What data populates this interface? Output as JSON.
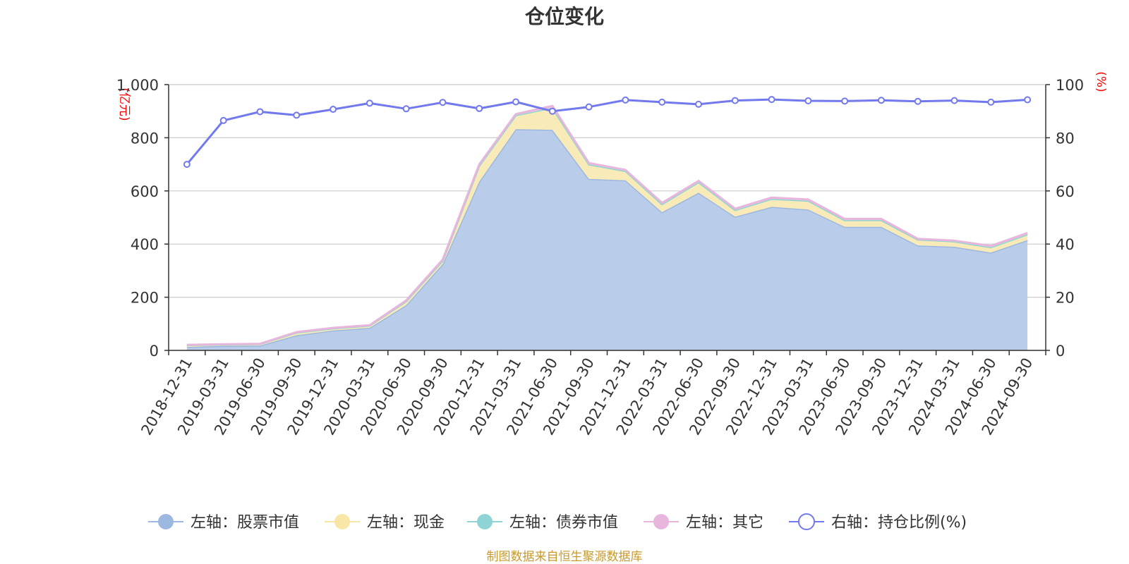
{
  "chart_data": {
    "type": "area",
    "title": "仓位变化",
    "left_unit": "(亿元)",
    "right_unit": "(%)",
    "categories": [
      "2018-12-31",
      "2019-03-31",
      "2019-06-30",
      "2019-09-30",
      "2019-12-31",
      "2020-03-31",
      "2020-06-30",
      "2020-09-30",
      "2020-12-31",
      "2021-03-31",
      "2021-06-30",
      "2021-09-30",
      "2021-12-31",
      "2022-03-31",
      "2022-06-30",
      "2022-09-30",
      "2022-12-31",
      "2023-03-31",
      "2023-06-30",
      "2023-09-30",
      "2023-12-31",
      "2024-03-31",
      "2024-06-30",
      "2024-09-30"
    ],
    "left_axis": {
      "min": 0,
      "max": 1000,
      "ticks": [
        0,
        200,
        400,
        600,
        800,
        1000
      ],
      "tick_labels": [
        "0",
        "200",
        "400",
        "600",
        "800",
        "1,000"
      ]
    },
    "right_axis": {
      "min": 0,
      "max": 100,
      "ticks": [
        0,
        20,
        40,
        60,
        80,
        100
      ],
      "tick_labels": [
        "0",
        "20",
        "40",
        "60",
        "80",
        "100"
      ]
    },
    "series": [
      {
        "name": "左轴：股票市值",
        "axis": "left",
        "stack": true,
        "color": "#9cb8e0",
        "fill": "#b9cdea",
        "values": [
          13,
          17,
          18,
          57,
          75,
          85,
          170,
          325,
          635,
          832,
          830,
          645,
          640,
          520,
          593,
          503,
          540,
          530,
          465,
          465,
          395,
          390,
          368,
          415
        ]
      },
      {
        "name": "左轴：现金",
        "axis": "left",
        "stack": true,
        "color": "#f7e6a6",
        "fill": "#f8ebb8",
        "values": [
          7,
          5,
          6,
          10,
          8,
          8,
          15,
          13,
          60,
          53,
          83,
          55,
          35,
          30,
          40,
          25,
          30,
          33,
          25,
          25,
          22,
          20,
          20,
          22
        ]
      },
      {
        "name": "左轴：债券市值",
        "axis": "left",
        "stack": true,
        "color": "#8fd4d4",
        "fill": "#a8dede",
        "values": [
          0,
          0,
          0,
          0,
          0,
          0,
          0,
          0,
          0,
          0,
          0,
          0,
          0,
          0,
          0,
          0,
          0,
          0,
          0,
          0,
          0,
          0,
          0,
          0
        ]
      },
      {
        "name": "左轴：其它",
        "axis": "left",
        "stack": true,
        "color": "#e8b6dc",
        "fill": "#efcce6",
        "values": [
          1,
          1,
          1,
          2,
          2,
          2,
          3,
          4,
          5,
          4,
          7,
          5,
          4,
          5,
          5,
          5,
          5,
          5,
          5,
          5,
          3,
          3,
          5,
          5
        ]
      },
      {
        "name": "右轴：持仓比例(%)",
        "axis": "right",
        "stack": false,
        "color": "#7279ec",
        "values": [
          70,
          86.5,
          89.8,
          88.5,
          90.7,
          93,
          90.9,
          93.3,
          91,
          93.5,
          90,
          91.6,
          94.2,
          93.4,
          92.6,
          94,
          94.4,
          93.9,
          93.8,
          94.1,
          93.7,
          94,
          93.4,
          94.3
        ]
      }
    ],
    "grid": true,
    "legend_position": "bottom"
  },
  "source_note": "制图数据来自恒生聚源数据库",
  "colors": {
    "title": "#333333",
    "axis": "#333333",
    "gridline": "#cccccc",
    "unit_text": "#ff0000",
    "source_text": "#c8992b"
  }
}
